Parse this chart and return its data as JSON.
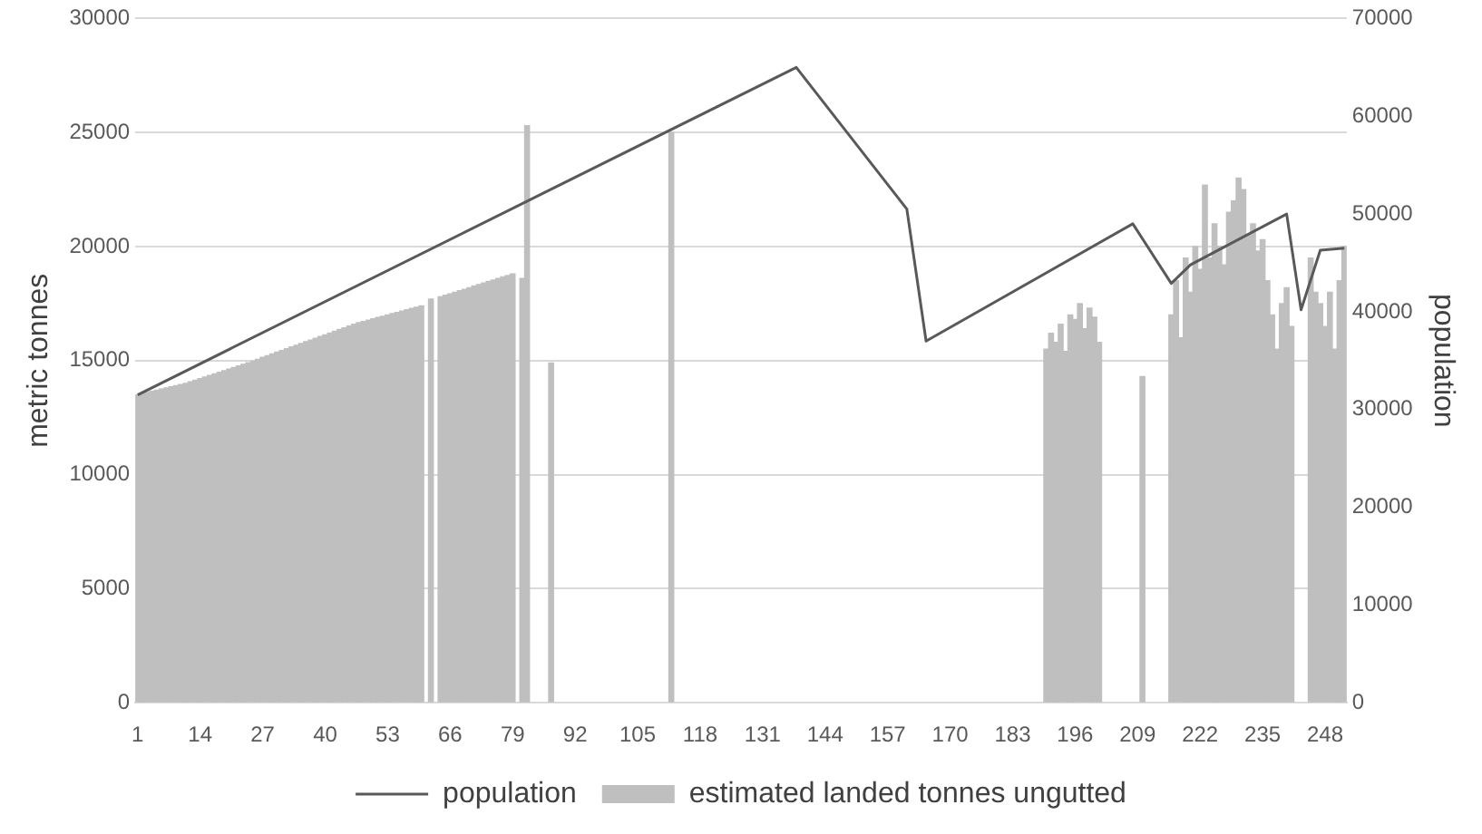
{
  "chart_data": {
    "type": "bar",
    "ylabel": "metric tonnes",
    "y2label": "population",
    "x": [
      1,
      2,
      3,
      4,
      5,
      6,
      7,
      8,
      9,
      10,
      11,
      12,
      13,
      14,
      15,
      16,
      17,
      18,
      19,
      20,
      21,
      22,
      23,
      24,
      25,
      26,
      27,
      28,
      29,
      30,
      31,
      32,
      33,
      34,
      35,
      36,
      37,
      38,
      39,
      40,
      41,
      42,
      43,
      44,
      45,
      46,
      47,
      48,
      49,
      50,
      51,
      52,
      53,
      54,
      55,
      56,
      57,
      58,
      59,
      60,
      61,
      62,
      63,
      64,
      65,
      66,
      67,
      68,
      69,
      70,
      71,
      72,
      73,
      74,
      75,
      76,
      77,
      78,
      79,
      80,
      81,
      82,
      83,
      84,
      85,
      86,
      87,
      88,
      89,
      90,
      91,
      92,
      93,
      94,
      95,
      96,
      97,
      98,
      99,
      100,
      101,
      102,
      103,
      104,
      105,
      106,
      107,
      108,
      109,
      110,
      111,
      112,
      113,
      114,
      115,
      116,
      117,
      118,
      119,
      120,
      121,
      122,
      123,
      124,
      125,
      126,
      127,
      128,
      129,
      130,
      131,
      132,
      133,
      134,
      135,
      136,
      137,
      138,
      139,
      140,
      141,
      142,
      143,
      144,
      145,
      146,
      147,
      148,
      149,
      150,
      151,
      152,
      153,
      154,
      155,
      156,
      157,
      158,
      159,
      160,
      161,
      162,
      163,
      164,
      165,
      166,
      167,
      168,
      169,
      170,
      171,
      172,
      173,
      174,
      175,
      176,
      177,
      178,
      179,
      180,
      181,
      182,
      183,
      184,
      185,
      186,
      187,
      188,
      189,
      190,
      191,
      192,
      193,
      194,
      195,
      196,
      197,
      198,
      199,
      200,
      201,
      202,
      203,
      204,
      205,
      206,
      207,
      208,
      209,
      210,
      211,
      212,
      213,
      214,
      215,
      216,
      217,
      218,
      219,
      220,
      221,
      222,
      223,
      224,
      225,
      226,
      227,
      228,
      229,
      230,
      231,
      232,
      233,
      234,
      235,
      236,
      237,
      238,
      239,
      240,
      241,
      242,
      243,
      244,
      245,
      246,
      247,
      248,
      249,
      250,
      251,
      252
    ],
    "xlim": [
      0.5,
      252.5
    ],
    "xticks": [
      1,
      14,
      27,
      40,
      53,
      66,
      79,
      92,
      105,
      118,
      131,
      144,
      157,
      170,
      183,
      196,
      209,
      222,
      235,
      248
    ],
    "ylim": [
      0,
      30000
    ],
    "yticks": [
      0,
      5000,
      10000,
      15000,
      20000,
      25000,
      30000
    ],
    "y2lim": [
      0,
      70000
    ],
    "y2ticks": [
      0,
      10000,
      20000,
      30000,
      40000,
      50000,
      60000,
      70000
    ],
    "grid": "y",
    "legend": "bottom",
    "series": [
      {
        "name": "estimated landed tonnes ungutted",
        "color": "#bfbfbf",
        "values": [
          13500,
          13550,
          13600,
          13650,
          13700,
          13750,
          13800,
          13850,
          13900,
          13950,
          14000,
          14070,
          14140,
          14210,
          14280,
          14350,
          14420,
          14490,
          14560,
          14630,
          14700,
          14770,
          14840,
          14910,
          14980,
          15060,
          15140,
          15210,
          15290,
          15370,
          15440,
          15520,
          15600,
          15670,
          15750,
          15830,
          15900,
          15980,
          16060,
          16130,
          16210,
          16290,
          16370,
          16440,
          16520,
          16600,
          16660,
          16710,
          16770,
          16830,
          16890,
          16940,
          17000,
          17060,
          17110,
          17170,
          17230,
          17290,
          17340,
          17400,
          null,
          17700,
          null,
          17800,
          17870,
          17930,
          18000,
          18070,
          18130,
          18200,
          18270,
          18330,
          18400,
          18470,
          18530,
          18600,
          18670,
          18730,
          18800,
          null,
          18600,
          25300,
          null,
          null,
          null,
          null,
          14900,
          null,
          null,
          null,
          null,
          null,
          null,
          null,
          null,
          null,
          null,
          null,
          null,
          null,
          null,
          null,
          null,
          null,
          null,
          null,
          null,
          null,
          null,
          null,
          null,
          25000,
          null,
          null,
          null,
          null,
          null,
          null,
          null,
          null,
          null,
          null,
          null,
          null,
          null,
          null,
          null,
          null,
          null,
          null,
          null,
          null,
          null,
          null,
          null,
          null,
          null,
          null,
          null,
          null,
          null,
          null,
          null,
          null,
          null,
          null,
          null,
          null,
          null,
          null,
          null,
          null,
          null,
          null,
          null,
          null,
          null,
          null,
          null,
          null,
          null,
          null,
          null,
          null,
          null,
          null,
          null,
          null,
          null,
          null,
          null,
          null,
          null,
          null,
          null,
          null,
          null,
          null,
          null,
          null,
          null,
          null,
          null,
          null,
          null,
          null,
          null,
          null,
          null,
          15500,
          16200,
          15800,
          16600,
          15400,
          17000,
          16800,
          17500,
          16400,
          17300,
          16900,
          15800,
          null,
          null,
          null,
          null,
          null,
          null,
          null,
          null,
          14300,
          null,
          null,
          null,
          null,
          null,
          17000,
          18500,
          16000,
          19500,
          18000,
          20000,
          19000,
          22700,
          19500,
          21000,
          20000,
          19200,
          21500,
          22000,
          23000,
          22500,
          20500,
          21000,
          19800,
          20300,
          18500,
          17000,
          15500,
          17500,
          18200,
          16500,
          null,
          null,
          null,
          19500,
          18000,
          17500,
          16500,
          18000,
          15500,
          18500,
          20000
        ]
      },
      {
        "name": "population",
        "type": "line",
        "axis": "y2",
        "color": "#595959",
        "marker": "none",
        "x": [
          1,
          138,
          161,
          165,
          208,
          216,
          220,
          240,
          243,
          247,
          252
        ],
        "values": [
          31500,
          65000,
          50500,
          37000,
          49000,
          42900,
          44800,
          50000,
          40200,
          46300,
          46500
        ]
      }
    ]
  }
}
